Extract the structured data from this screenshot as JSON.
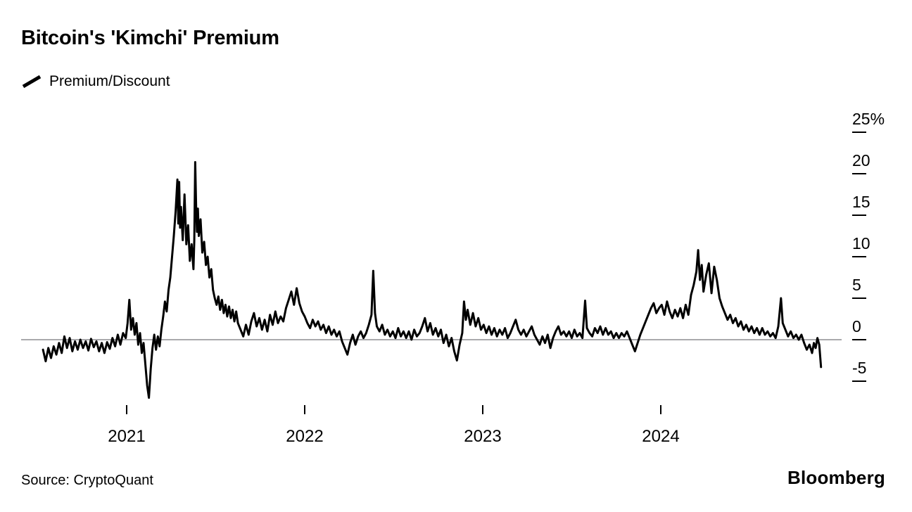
{
  "page": {
    "title": "Bitcoin's 'Kimchi' Premium",
    "legend": {
      "label": "Premium/Discount",
      "swatch_color": "#000000"
    },
    "source": "Source: CryptoQuant",
    "brand": "Bloomberg"
  },
  "chart_data": {
    "type": "line",
    "title": "Bitcoin's 'Kimchi' Premium",
    "series_name": "Premium/Discount",
    "unit": "%",
    "line_color": "#000000",
    "zero_line_color": "#76767b",
    "tick_color": "#000000",
    "x_axis": {
      "ticks": [
        2021,
        2022,
        2023,
        2024
      ],
      "labels": [
        "2021",
        "2022",
        "2023",
        "2024"
      ],
      "range": [
        2020.52,
        2024.92
      ]
    },
    "y_axis": {
      "ticks": [
        25,
        20,
        15,
        10,
        5,
        0,
        -5
      ],
      "labels": [
        "25%",
        "20",
        "15",
        "10",
        "5",
        "0",
        "-5"
      ],
      "range": [
        -7.5,
        26
      ],
      "zero_line": true
    },
    "points": [
      [
        2020.53,
        -1.2
      ],
      [
        2020.545,
        -2.6
      ],
      [
        2020.56,
        -1.0
      ],
      [
        2020.575,
        -2.2
      ],
      [
        2020.59,
        -0.8
      ],
      [
        2020.605,
        -1.8
      ],
      [
        2020.62,
        -0.4
      ],
      [
        2020.635,
        -1.6
      ],
      [
        2020.65,
        0.4
      ],
      [
        2020.665,
        -1.0
      ],
      [
        2020.68,
        0.2
      ],
      [
        2020.695,
        -1.4
      ],
      [
        2020.71,
        -0.2
      ],
      [
        2020.725,
        -1.2
      ],
      [
        2020.74,
        0.0
      ],
      [
        2020.755,
        -1.0
      ],
      [
        2020.77,
        -0.2
      ],
      [
        2020.785,
        -1.3
      ],
      [
        2020.8,
        0.1
      ],
      [
        2020.815,
        -0.9
      ],
      [
        2020.83,
        -0.2
      ],
      [
        2020.845,
        -1.4
      ],
      [
        2020.86,
        -0.4
      ],
      [
        2020.875,
        -1.6
      ],
      [
        2020.89,
        -0.3
      ],
      [
        2020.905,
        -1.1
      ],
      [
        2020.92,
        0.2
      ],
      [
        2020.935,
        -0.8
      ],
      [
        2020.95,
        0.6
      ],
      [
        2020.965,
        -0.6
      ],
      [
        2020.98,
        0.8
      ],
      [
        2020.995,
        0.2
      ],
      [
        2021.005,
        2.0
      ],
      [
        2021.015,
        4.8
      ],
      [
        2021.025,
        1.2
      ],
      [
        2021.035,
        2.6
      ],
      [
        2021.045,
        0.6
      ],
      [
        2021.055,
        2.0
      ],
      [
        2021.065,
        -0.6
      ],
      [
        2021.075,
        0.8
      ],
      [
        2021.085,
        -1.6
      ],
      [
        2021.095,
        -0.4
      ],
      [
        2021.105,
        -3.0
      ],
      [
        2021.115,
        -5.5
      ],
      [
        2021.125,
        -7.0
      ],
      [
        2021.135,
        -3.5
      ],
      [
        2021.145,
        -1.0
      ],
      [
        2021.155,
        0.6
      ],
      [
        2021.165,
        -1.2
      ],
      [
        2021.175,
        0.4
      ],
      [
        2021.185,
        -0.8
      ],
      [
        2021.195,
        1.2
      ],
      [
        2021.205,
        2.8
      ],
      [
        2021.215,
        4.6
      ],
      [
        2021.225,
        3.4
      ],
      [
        2021.235,
        6.0
      ],
      [
        2021.245,
        7.5
      ],
      [
        2021.255,
        10.0
      ],
      [
        2021.265,
        12.5
      ],
      [
        2021.275,
        15.5
      ],
      [
        2021.285,
        19.3
      ],
      [
        2021.29,
        14.0
      ],
      [
        2021.295,
        19.0
      ],
      [
        2021.3,
        13.5
      ],
      [
        2021.305,
        16.0
      ],
      [
        2021.315,
        12.0
      ],
      [
        2021.325,
        17.5
      ],
      [
        2021.335,
        11.5
      ],
      [
        2021.345,
        13.8
      ],
      [
        2021.355,
        9.5
      ],
      [
        2021.365,
        11.5
      ],
      [
        2021.375,
        8.5
      ],
      [
        2021.38,
        12.0
      ],
      [
        2021.385,
        21.4
      ],
      [
        2021.39,
        16.0
      ],
      [
        2021.395,
        13.0
      ],
      [
        2021.4,
        15.8
      ],
      [
        2021.405,
        12.5
      ],
      [
        2021.415,
        14.5
      ],
      [
        2021.425,
        10.5
      ],
      [
        2021.435,
        11.8
      ],
      [
        2021.445,
        9.0
      ],
      [
        2021.455,
        10.0
      ],
      [
        2021.465,
        7.5
      ],
      [
        2021.475,
        8.5
      ],
      [
        2021.485,
        6.0
      ],
      [
        2021.495,
        5.0
      ],
      [
        2021.505,
        4.2
      ],
      [
        2021.515,
        5.2
      ],
      [
        2021.525,
        3.6
      ],
      [
        2021.535,
        4.8
      ],
      [
        2021.545,
        3.2
      ],
      [
        2021.555,
        4.2
      ],
      [
        2021.565,
        2.8
      ],
      [
        2021.575,
        4.0
      ],
      [
        2021.585,
        2.6
      ],
      [
        2021.595,
        3.6
      ],
      [
        2021.605,
        2.2
      ],
      [
        2021.615,
        3.4
      ],
      [
        2021.625,
        2.0
      ],
      [
        2021.64,
        1.2
      ],
      [
        2021.655,
        0.4
      ],
      [
        2021.67,
        1.8
      ],
      [
        2021.685,
        0.6
      ],
      [
        2021.7,
        2.2
      ],
      [
        2021.715,
        3.2
      ],
      [
        2021.73,
        1.6
      ],
      [
        2021.745,
        2.6
      ],
      [
        2021.76,
        1.2
      ],
      [
        2021.775,
        2.4
      ],
      [
        2021.79,
        1.0
      ],
      [
        2021.805,
        3.0
      ],
      [
        2021.82,
        1.8
      ],
      [
        2021.835,
        3.4
      ],
      [
        2021.85,
        2.0
      ],
      [
        2021.865,
        2.8
      ],
      [
        2021.88,
        2.2
      ],
      [
        2021.895,
        3.8
      ],
      [
        2021.91,
        4.8
      ],
      [
        2021.925,
        5.8
      ],
      [
        2021.94,
        4.2
      ],
      [
        2021.955,
        6.2
      ],
      [
        2021.97,
        4.4
      ],
      [
        2021.985,
        3.4
      ],
      [
        2022.0,
        2.8
      ],
      [
        2022.015,
        2.0
      ],
      [
        2022.03,
        1.4
      ],
      [
        2022.045,
        2.4
      ],
      [
        2022.06,
        1.6
      ],
      [
        2022.075,
        2.2
      ],
      [
        2022.09,
        1.2
      ],
      [
        2022.105,
        1.8
      ],
      [
        2022.12,
        0.8
      ],
      [
        2022.135,
        1.6
      ],
      [
        2022.15,
        0.6
      ],
      [
        2022.165,
        1.2
      ],
      [
        2022.18,
        0.4
      ],
      [
        2022.195,
        1.0
      ],
      [
        2022.21,
        -0.2
      ],
      [
        2022.225,
        -1.0
      ],
      [
        2022.24,
        -1.8
      ],
      [
        2022.255,
        -0.4
      ],
      [
        2022.27,
        0.6
      ],
      [
        2022.285,
        -0.6
      ],
      [
        2022.3,
        0.4
      ],
      [
        2022.315,
        1.0
      ],
      [
        2022.33,
        0.2
      ],
      [
        2022.345,
        0.8
      ],
      [
        2022.36,
        1.8
      ],
      [
        2022.375,
        3.0
      ],
      [
        2022.385,
        8.3
      ],
      [
        2022.395,
        3.2
      ],
      [
        2022.405,
        1.6
      ],
      [
        2022.42,
        1.0
      ],
      [
        2022.435,
        1.8
      ],
      [
        2022.45,
        0.6
      ],
      [
        2022.465,
        1.2
      ],
      [
        2022.48,
        0.4
      ],
      [
        2022.495,
        1.0
      ],
      [
        2022.51,
        0.2
      ],
      [
        2022.525,
        1.4
      ],
      [
        2022.54,
        0.4
      ],
      [
        2022.555,
        1.0
      ],
      [
        2022.57,
        0.2
      ],
      [
        2022.585,
        1.0
      ],
      [
        2022.6,
        0.0
      ],
      [
        2022.615,
        1.2
      ],
      [
        2022.63,
        0.4
      ],
      [
        2022.645,
        0.8
      ],
      [
        2022.66,
        1.6
      ],
      [
        2022.675,
        2.6
      ],
      [
        2022.69,
        1.0
      ],
      [
        2022.705,
        2.0
      ],
      [
        2022.72,
        0.6
      ],
      [
        2022.735,
        1.4
      ],
      [
        2022.75,
        0.4
      ],
      [
        2022.765,
        1.2
      ],
      [
        2022.78,
        -0.4
      ],
      [
        2022.795,
        0.6
      ],
      [
        2022.81,
        -0.8
      ],
      [
        2022.825,
        0.2
      ],
      [
        2022.84,
        -1.4
      ],
      [
        2022.855,
        -2.5
      ],
      [
        2022.87,
        -0.6
      ],
      [
        2022.885,
        0.8
      ],
      [
        2022.895,
        4.6
      ],
      [
        2022.905,
        2.4
      ],
      [
        2022.915,
        3.6
      ],
      [
        2022.93,
        1.8
      ],
      [
        2022.945,
        3.2
      ],
      [
        2022.96,
        1.6
      ],
      [
        2022.975,
        2.6
      ],
      [
        2022.99,
        1.2
      ],
      [
        2023.005,
        1.8
      ],
      [
        2023.02,
        0.8
      ],
      [
        2023.035,
        1.6
      ],
      [
        2023.05,
        0.6
      ],
      [
        2023.065,
        1.4
      ],
      [
        2023.08,
        0.4
      ],
      [
        2023.095,
        1.2
      ],
      [
        2023.11,
        0.6
      ],
      [
        2023.125,
        1.4
      ],
      [
        2023.14,
        0.2
      ],
      [
        2023.155,
        0.8
      ],
      [
        2023.17,
        1.6
      ],
      [
        2023.185,
        2.4
      ],
      [
        2023.2,
        1.2
      ],
      [
        2023.215,
        0.6
      ],
      [
        2023.23,
        1.2
      ],
      [
        2023.245,
        0.4
      ],
      [
        2023.26,
        1.0
      ],
      [
        2023.275,
        1.6
      ],
      [
        2023.29,
        0.6
      ],
      [
        2023.305,
        0.0
      ],
      [
        2023.32,
        -0.6
      ],
      [
        2023.335,
        0.4
      ],
      [
        2023.35,
        -0.4
      ],
      [
        2023.365,
        0.6
      ],
      [
        2023.38,
        -1.0
      ],
      [
        2023.395,
        0.2
      ],
      [
        2023.41,
        1.0
      ],
      [
        2023.425,
        1.6
      ],
      [
        2023.44,
        0.6
      ],
      [
        2023.455,
        1.0
      ],
      [
        2023.47,
        0.4
      ],
      [
        2023.485,
        1.0
      ],
      [
        2023.5,
        0.2
      ],
      [
        2023.515,
        1.2
      ],
      [
        2023.53,
        0.4
      ],
      [
        2023.545,
        0.8
      ],
      [
        2023.56,
        0.2
      ],
      [
        2023.575,
        4.7
      ],
      [
        2023.585,
        1.4
      ],
      [
        2023.6,
        0.8
      ],
      [
        2023.615,
        0.4
      ],
      [
        2023.63,
        1.4
      ],
      [
        2023.645,
        0.8
      ],
      [
        2023.66,
        1.6
      ],
      [
        2023.675,
        0.6
      ],
      [
        2023.69,
        1.4
      ],
      [
        2023.705,
        0.6
      ],
      [
        2023.72,
        1.0
      ],
      [
        2023.735,
        0.2
      ],
      [
        2023.75,
        0.8
      ],
      [
        2023.765,
        0.2
      ],
      [
        2023.78,
        0.8
      ],
      [
        2023.795,
        0.4
      ],
      [
        2023.81,
        1.0
      ],
      [
        2023.825,
        0.2
      ],
      [
        2023.84,
        -0.6
      ],
      [
        2023.855,
        -1.4
      ],
      [
        2023.87,
        -0.4
      ],
      [
        2023.885,
        0.6
      ],
      [
        2023.9,
        1.4
      ],
      [
        2023.915,
        2.2
      ],
      [
        2023.93,
        3.0
      ],
      [
        2023.945,
        3.8
      ],
      [
        2023.96,
        4.4
      ],
      [
        2023.975,
        3.2
      ],
      [
        2023.99,
        3.8
      ],
      [
        2024.005,
        4.2
      ],
      [
        2024.02,
        3.0
      ],
      [
        2024.035,
        4.6
      ],
      [
        2024.05,
        3.4
      ],
      [
        2024.065,
        2.6
      ],
      [
        2024.08,
        3.6
      ],
      [
        2024.095,
        2.8
      ],
      [
        2024.11,
        3.8
      ],
      [
        2024.125,
        2.6
      ],
      [
        2024.14,
        4.2
      ],
      [
        2024.155,
        3.0
      ],
      [
        2024.17,
        5.4
      ],
      [
        2024.185,
        6.6
      ],
      [
        2024.2,
        8.2
      ],
      [
        2024.21,
        10.8
      ],
      [
        2024.22,
        7.2
      ],
      [
        2024.23,
        9.0
      ],
      [
        2024.24,
        5.8
      ],
      [
        2024.255,
        7.8
      ],
      [
        2024.27,
        9.2
      ],
      [
        2024.285,
        5.6
      ],
      [
        2024.3,
        8.8
      ],
      [
        2024.315,
        7.2
      ],
      [
        2024.33,
        5.0
      ],
      [
        2024.345,
        4.0
      ],
      [
        2024.36,
        3.2
      ],
      [
        2024.375,
        2.4
      ],
      [
        2024.39,
        3.0
      ],
      [
        2024.405,
        2.0
      ],
      [
        2024.42,
        2.6
      ],
      [
        2024.435,
        1.6
      ],
      [
        2024.45,
        2.2
      ],
      [
        2024.465,
        1.2
      ],
      [
        2024.48,
        1.8
      ],
      [
        2024.495,
        1.0
      ],
      [
        2024.51,
        1.6
      ],
      [
        2024.525,
        0.8
      ],
      [
        2024.54,
        1.4
      ],
      [
        2024.555,
        0.6
      ],
      [
        2024.57,
        1.4
      ],
      [
        2024.585,
        0.6
      ],
      [
        2024.6,
        1.0
      ],
      [
        2024.615,
        0.4
      ],
      [
        2024.63,
        0.8
      ],
      [
        2024.645,
        0.2
      ],
      [
        2024.66,
        1.6
      ],
      [
        2024.675,
        5.0
      ],
      [
        2024.685,
        2.0
      ],
      [
        2024.7,
        1.2
      ],
      [
        2024.715,
        0.4
      ],
      [
        2024.73,
        1.0
      ],
      [
        2024.745,
        0.2
      ],
      [
        2024.76,
        0.6
      ],
      [
        2024.775,
        0.0
      ],
      [
        2024.79,
        0.6
      ],
      [
        2024.805,
        -0.4
      ],
      [
        2024.82,
        -1.2
      ],
      [
        2024.835,
        -0.6
      ],
      [
        2024.85,
        -1.6
      ],
      [
        2024.86,
        -0.4
      ],
      [
        2024.87,
        -1.0
      ],
      [
        2024.88,
        0.2
      ],
      [
        2024.89,
        -0.6
      ],
      [
        2024.9,
        -3.3
      ]
    ]
  }
}
